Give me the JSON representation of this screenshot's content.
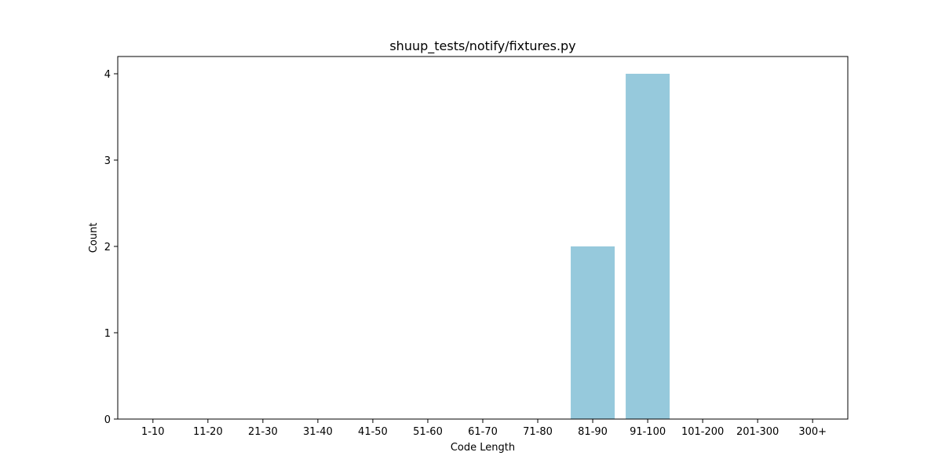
{
  "chart_data": {
    "type": "bar",
    "title": "shuup_tests/notify/fixtures.py",
    "xlabel": "Code Length",
    "ylabel": "Count",
    "categories": [
      "1-10",
      "11-20",
      "21-30",
      "31-40",
      "41-50",
      "51-60",
      "61-70",
      "71-80",
      "81-90",
      "91-100",
      "101-200",
      "201-300",
      "300+"
    ],
    "values": [
      0,
      0,
      0,
      0,
      0,
      0,
      0,
      0,
      2,
      4,
      0,
      0,
      0
    ],
    "ylim": [
      0,
      4.2
    ],
    "yticks": [
      0,
      1,
      2,
      3,
      4
    ],
    "bar_color": "#96c9dc",
    "grid": false,
    "legend": "none"
  }
}
